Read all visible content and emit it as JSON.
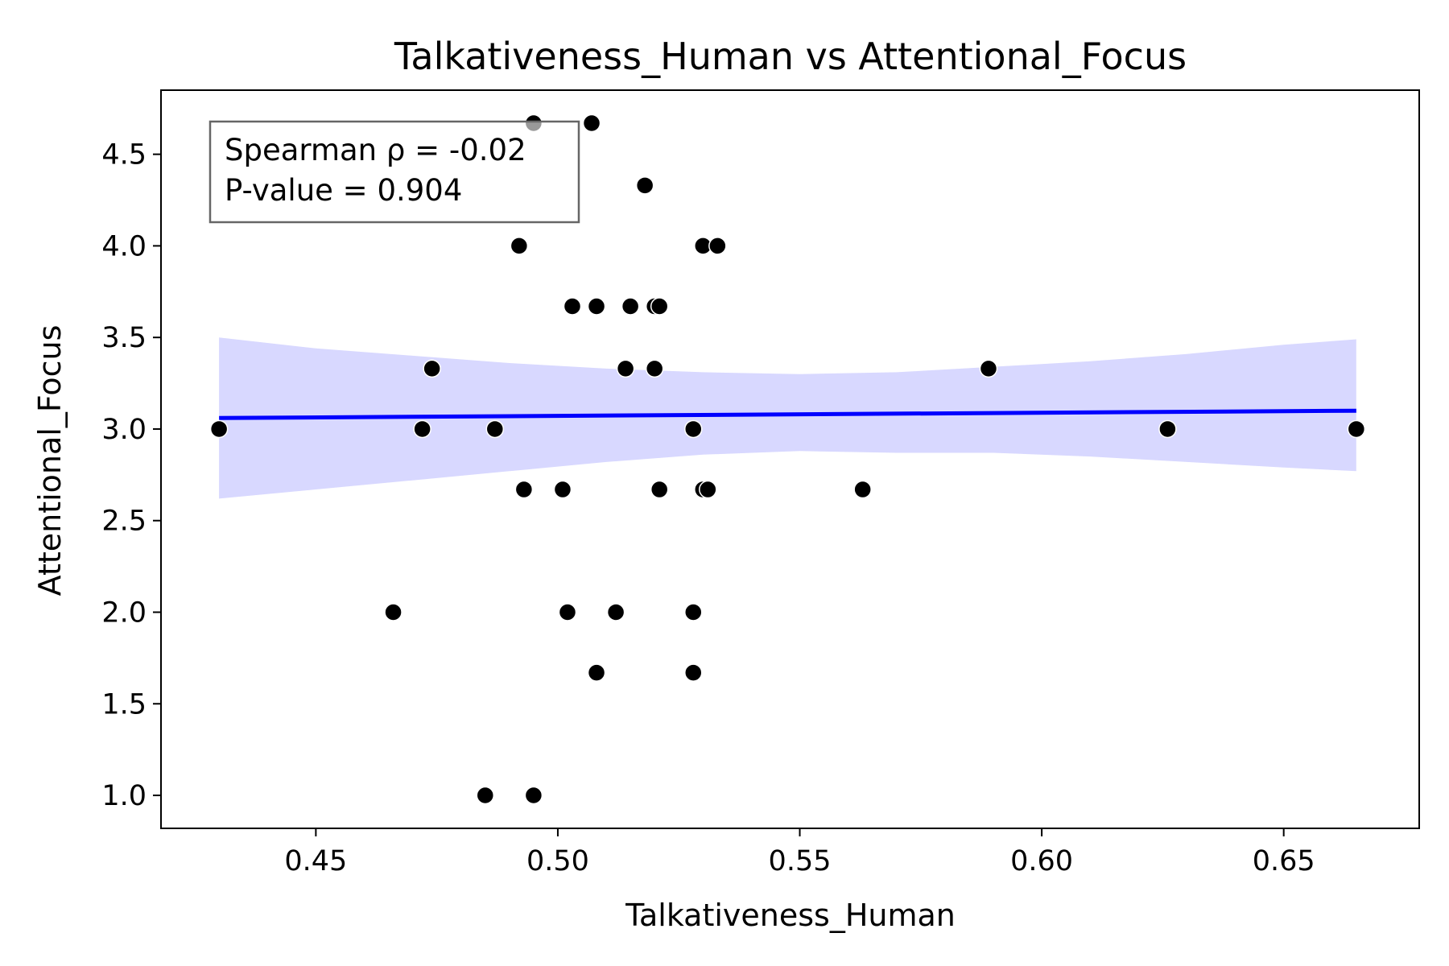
{
  "chart_data": {
    "type": "scatter",
    "title": "Talkativeness_Human vs Attentional_Focus",
    "xlabel": "Talkativeness_Human",
    "ylabel": "Attentional_Focus",
    "xlim": [
      0.418,
      0.678
    ],
    "ylim": [
      0.82,
      4.85
    ],
    "xticks": [
      0.45,
      0.5,
      0.55,
      0.6,
      0.65
    ],
    "xtick_labels": [
      "0.45",
      "0.50",
      "0.55",
      "0.60",
      "0.65"
    ],
    "yticks": [
      1.0,
      1.5,
      2.0,
      2.5,
      3.0,
      3.5,
      4.0,
      4.5
    ],
    "ytick_labels": [
      "1.0",
      "1.5",
      "2.0",
      "2.5",
      "3.0",
      "3.5",
      "4.0",
      "4.5"
    ],
    "grid": false,
    "points": [
      {
        "x": 0.43,
        "y": 3.0
      },
      {
        "x": 0.466,
        "y": 2.0
      },
      {
        "x": 0.472,
        "y": 3.0
      },
      {
        "x": 0.474,
        "y": 3.33
      },
      {
        "x": 0.485,
        "y": 1.0
      },
      {
        "x": 0.487,
        "y": 3.0
      },
      {
        "x": 0.492,
        "y": 4.0
      },
      {
        "x": 0.493,
        "y": 2.67
      },
      {
        "x": 0.495,
        "y": 4.67
      },
      {
        "x": 0.495,
        "y": 1.0
      },
      {
        "x": 0.501,
        "y": 2.67
      },
      {
        "x": 0.502,
        "y": 2.0
      },
      {
        "x": 0.503,
        "y": 3.67
      },
      {
        "x": 0.507,
        "y": 4.67
      },
      {
        "x": 0.508,
        "y": 3.67
      },
      {
        "x": 0.508,
        "y": 1.67
      },
      {
        "x": 0.512,
        "y": 2.0
      },
      {
        "x": 0.514,
        "y": 3.33
      },
      {
        "x": 0.515,
        "y": 3.67
      },
      {
        "x": 0.518,
        "y": 4.33
      },
      {
        "x": 0.52,
        "y": 3.33
      },
      {
        "x": 0.52,
        "y": 3.67
      },
      {
        "x": 0.521,
        "y": 3.67
      },
      {
        "x": 0.521,
        "y": 2.67
      },
      {
        "x": 0.528,
        "y": 1.67
      },
      {
        "x": 0.528,
        "y": 3.0
      },
      {
        "x": 0.528,
        "y": 2.0
      },
      {
        "x": 0.53,
        "y": 4.0
      },
      {
        "x": 0.53,
        "y": 2.67
      },
      {
        "x": 0.531,
        "y": 2.67
      },
      {
        "x": 0.533,
        "y": 4.0
      },
      {
        "x": 0.563,
        "y": 2.67
      },
      {
        "x": 0.589,
        "y": 3.33
      },
      {
        "x": 0.626,
        "y": 3.0
      },
      {
        "x": 0.665,
        "y": 3.0
      }
    ],
    "regression": {
      "x": [
        0.43,
        0.665
      ],
      "y": [
        3.06,
        3.1
      ],
      "color": "#0000ff"
    },
    "confidence_band": {
      "x": [
        0.43,
        0.45,
        0.47,
        0.49,
        0.51,
        0.53,
        0.55,
        0.57,
        0.59,
        0.61,
        0.63,
        0.65,
        0.665
      ],
      "upper": [
        3.5,
        3.44,
        3.4,
        3.36,
        3.33,
        3.31,
        3.3,
        3.31,
        3.34,
        3.37,
        3.41,
        3.46,
        3.49
      ],
      "lower": [
        2.62,
        2.67,
        2.72,
        2.77,
        2.82,
        2.86,
        2.88,
        2.87,
        2.87,
        2.85,
        2.82,
        2.79,
        2.77
      ],
      "color": "#d8d8ff"
    },
    "point_color": "#000000",
    "annotation": {
      "lines": [
        "Spearman ρ = -0.02",
        "P-value = 0.904"
      ],
      "placement": "top-left"
    }
  }
}
